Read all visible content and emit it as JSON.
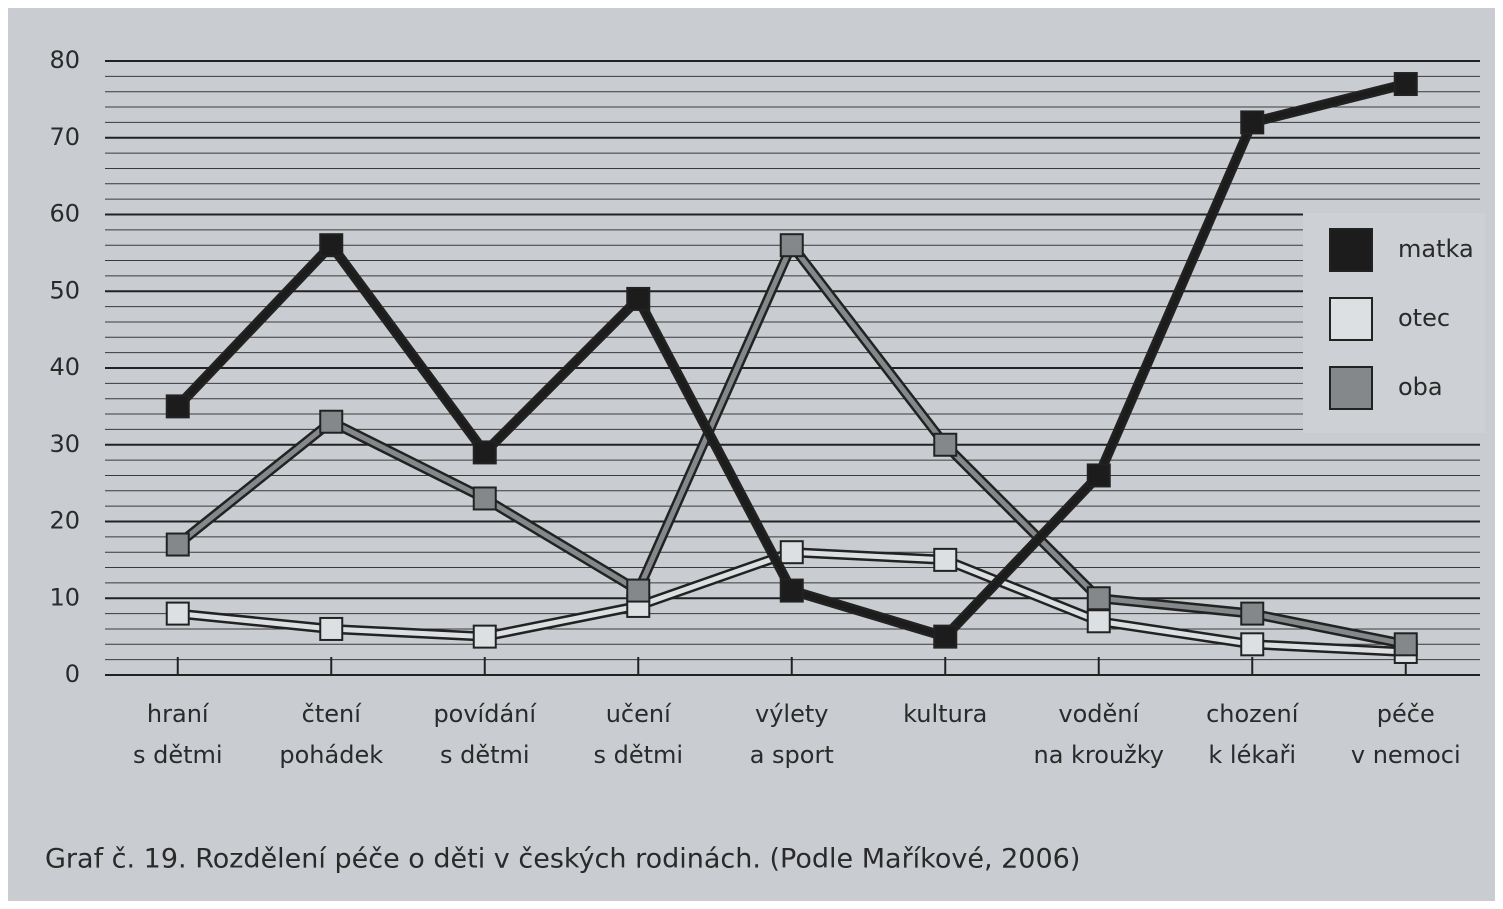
{
  "chart_data": {
    "type": "line",
    "title": "Graf č. 19. Rozdělení péče o děti v českých rodinách. (Podle Maříkové, 2006)",
    "categories": [
      [
        "hraní",
        "s dětmi"
      ],
      [
        "čtení",
        "pohádek"
      ],
      [
        "povídání",
        "s dětmi"
      ],
      [
        "učení",
        "s dětmi"
      ],
      [
        "výlety",
        "a sport"
      ],
      [
        "kultura"
      ],
      [
        "vodění",
        "na kroužky"
      ],
      [
        "chození",
        "k lékaři"
      ],
      [
        "péče",
        "v nemoci"
      ]
    ],
    "series": [
      {
        "name": "matka",
        "color": "#1c1c1c",
        "values": [
          35,
          56,
          29,
          49,
          11,
          5,
          26,
          72,
          77
        ]
      },
      {
        "name": "otec",
        "color": "#dde0e3",
        "values": [
          8,
          6,
          5,
          9,
          16,
          15,
          7,
          4,
          3
        ]
      },
      {
        "name": "oba",
        "color": "#85888b",
        "values": [
          17,
          33,
          23,
          11,
          56,
          30,
          10,
          8,
          4
        ]
      }
    ],
    "ylim": [
      0,
      80
    ],
    "yticks": [
      0,
      10,
      20,
      30,
      40,
      50,
      60,
      70,
      80
    ],
    "grid": true,
    "minor_grid_step": 2,
    "legend": "right"
  }
}
